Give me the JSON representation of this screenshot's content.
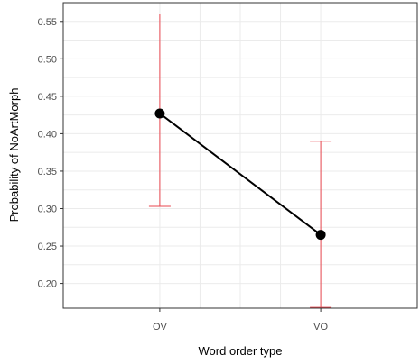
{
  "chart_data": {
    "type": "line",
    "xlabel": "Word order type",
    "ylabel": "Probability of NoArtMorph",
    "categories": [
      "OV",
      "VO"
    ],
    "series": [
      {
        "values": [
          0.427,
          0.265
        ],
        "lower": [
          0.303,
          0.168
        ],
        "upper": [
          0.56,
          0.39
        ]
      }
    ],
    "ylim": [
      0.167,
      0.575
    ],
    "yticks": [
      0.2,
      0.25,
      0.3,
      0.35,
      0.4,
      0.45,
      0.5,
      0.55
    ],
    "ytick_labels": [
      "0.20",
      "0.25",
      "0.30",
      "0.35",
      "0.40",
      "0.45",
      "0.50",
      "0.55"
    ],
    "grid": true,
    "colors": {
      "line": "#000000",
      "point": "#000000",
      "errorbar": "#e8474f",
      "grid": "#ebebeb",
      "panel_border": "#333333"
    }
  }
}
